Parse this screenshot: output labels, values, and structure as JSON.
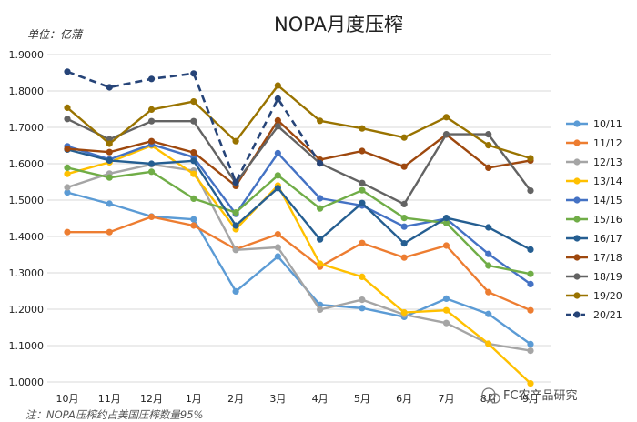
{
  "chart_data": {
    "type": "line",
    "title": "NOPA月度压榨",
    "unit_label": "单位：亿蒲",
    "note": "注：NOPA压榨约占美国压榨数量95%",
    "watermark": "FC农产品研究",
    "categories": [
      "10月",
      "11月",
      "12月",
      "1月",
      "2月",
      "3月",
      "4月",
      "5月",
      "6月",
      "7月",
      "8月",
      "9月"
    ],
    "y_tick_labels": [
      "1.0000",
      "1.1000",
      "1.2000",
      "1.3000",
      "1.4000",
      "1.5000",
      "1.6000",
      "1.7000",
      "1.8000",
      "1.9000"
    ],
    "ylim": [
      1.0,
      1.9
    ],
    "grid": true,
    "legend_position": "right",
    "series": [
      {
        "name": "10/11",
        "color": "#5b9bd5",
        "dashed": false,
        "values": [
          1.521,
          1.49,
          1.455,
          1.447,
          1.249,
          1.345,
          1.212,
          1.203,
          1.179,
          1.229,
          1.187,
          1.104
        ]
      },
      {
        "name": "11/12",
        "color": "#ed7d31",
        "dashed": false,
        "values": [
          1.412,
          1.412,
          1.454,
          1.43,
          1.365,
          1.406,
          1.317,
          1.382,
          1.342,
          1.375,
          1.247,
          1.197
        ]
      },
      {
        "name": "12/13",
        "color": "#a5a5a5",
        "dashed": false,
        "values": [
          1.535,
          1.573,
          1.598,
          1.581,
          1.363,
          1.37,
          1.199,
          1.226,
          1.185,
          1.162,
          1.105,
          1.086
        ]
      },
      {
        "name": "13/14",
        "color": "#ffc000",
        "dashed": false,
        "values": [
          1.572,
          1.604,
          1.65,
          1.572,
          1.42,
          1.54,
          1.325,
          1.289,
          1.191,
          1.197,
          1.105,
          0.996
        ]
      },
      {
        "name": "14/15",
        "color": "#4472c4",
        "dashed": false,
        "values": [
          1.648,
          1.612,
          1.653,
          1.618,
          1.462,
          1.629,
          1.505,
          1.485,
          1.427,
          1.449,
          1.352,
          1.269
        ]
      },
      {
        "name": "15/16",
        "color": "#70ad47",
        "dashed": false,
        "values": [
          1.589,
          1.562,
          1.578,
          1.504,
          1.466,
          1.568,
          1.477,
          1.527,
          1.451,
          1.437,
          1.32,
          1.297
        ]
      },
      {
        "name": "16/17",
        "color": "#255e91",
        "dashed": false,
        "values": [
          1.639,
          1.609,
          1.6,
          1.608,
          1.43,
          1.533,
          1.392,
          1.492,
          1.381,
          1.451,
          1.425,
          1.364
        ]
      },
      {
        "name": "17/18",
        "color": "#9e480e",
        "dashed": false,
        "values": [
          1.641,
          1.632,
          1.662,
          1.631,
          1.539,
          1.719,
          1.611,
          1.635,
          1.592,
          1.68,
          1.589,
          1.609
        ]
      },
      {
        "name": "18/19",
        "color": "#636363",
        "dashed": false,
        "values": [
          1.723,
          1.667,
          1.717,
          1.717,
          1.547,
          1.703,
          1.601,
          1.547,
          1.489,
          1.681,
          1.681,
          1.526
        ]
      },
      {
        "name": "19/20",
        "color": "#997300",
        "dashed": false,
        "values": [
          1.754,
          1.655,
          1.749,
          1.771,
          1.662,
          1.815,
          1.718,
          1.697,
          1.672,
          1.728,
          1.651,
          1.615
        ]
      },
      {
        "name": "20/21",
        "color": "#264478",
        "dashed": true,
        "values": [
          1.853,
          1.81,
          1.833,
          1.848,
          1.549,
          1.779,
          1.601,
          null,
          null,
          null,
          null,
          null
        ]
      }
    ]
  }
}
